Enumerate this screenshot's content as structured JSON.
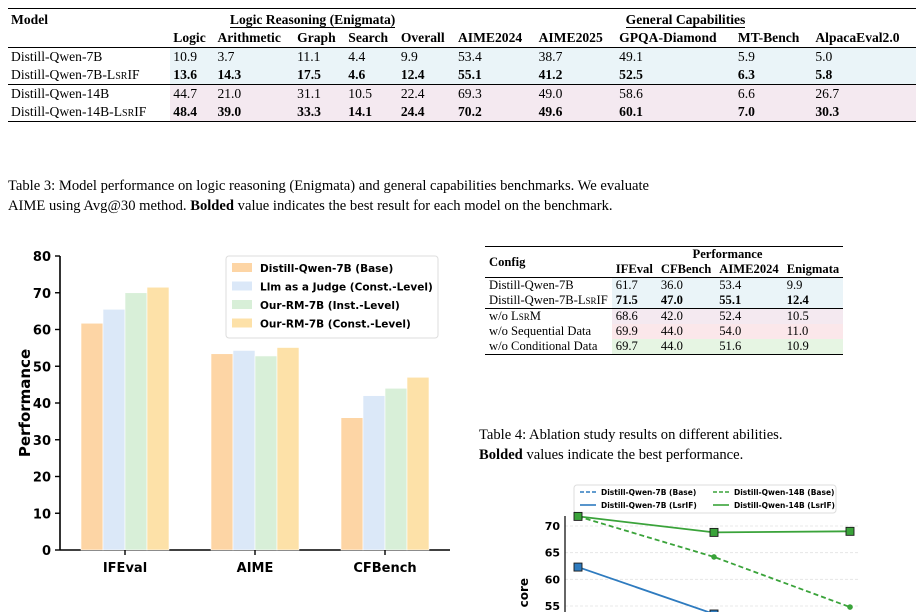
{
  "table3": {
    "model_header": "Model",
    "group_logic": "Logic Reasoning (Enigmata)",
    "group_general": "General Capabilities",
    "columns": [
      "Logic",
      "Arithmetic",
      "Graph",
      "Search",
      "Overall",
      "AIME2024",
      "AIME2025",
      "GPQA-Diamond",
      "MT-Bench",
      "AlpacaEval2.0"
    ],
    "rows": [
      {
        "model": "Distill-Qwen-7B",
        "values": [
          "10.9",
          "3.7",
          "11.1",
          "4.4",
          "9.9",
          "53.4",
          "38.7",
          "49.1",
          "5.9",
          "5.0"
        ]
      },
      {
        "model": "Distill-Qwen-7B-LsrIF",
        "values": [
          "13.6",
          "14.3",
          "17.5",
          "4.6",
          "12.4",
          "55.1",
          "41.2",
          "52.5",
          "6.3",
          "5.8"
        ]
      },
      {
        "model": "Distill-Qwen-14B",
        "values": [
          "44.7",
          "21.0",
          "31.1",
          "10.5",
          "22.4",
          "69.3",
          "49.0",
          "58.6",
          "6.6",
          "26.7"
        ]
      },
      {
        "model": "Distill-Qwen-14B-LsrIF",
        "values": [
          "48.4",
          "39.0",
          "33.3",
          "14.1",
          "24.4",
          "70.2",
          "49.6",
          "60.1",
          "7.0",
          "30.3"
        ]
      }
    ],
    "caption_line1": "Table 3: Model performance on logic reasoning (Enigmata) and general capabilities benchmarks. We evaluate",
    "caption_line2_a": "AIME using Avg@30 method.",
    "caption_line2_bold": "Bolded",
    "caption_line2_b": "value indicates the best result for each model on the benchmark."
  },
  "table4": {
    "config_header": "Config",
    "perf_header": "Performance",
    "columns": [
      "IFEval",
      "CFBench",
      "AIME2024",
      "Enigmata"
    ],
    "rows": [
      {
        "config": "Distill-Qwen-7B",
        "values": [
          "61.7",
          "36.0",
          "53.4",
          "9.9"
        ]
      },
      {
        "config": "Distill-Qwen-7B-LsrIF",
        "values": [
          "71.5",
          "47.0",
          "55.1",
          "12.4"
        ]
      },
      {
        "config": "w/o LsRM",
        "values": [
          "68.6",
          "42.0",
          "52.4",
          "10.5"
        ]
      },
      {
        "config": "w/o Sequential Data",
        "values": [
          "69.9",
          "44.0",
          "54.0",
          "11.0"
        ]
      },
      {
        "config": "w/o Conditional Data",
        "values": [
          "69.7",
          "44.0",
          "51.6",
          "10.9"
        ]
      }
    ],
    "caption_line1": "Table 4: Ablation study results on different abilities.",
    "caption_line2_bold": "Bolded",
    "caption_line2_b": "values indicate the best performance."
  },
  "chart_data": [
    {
      "type": "bar",
      "categories": [
        "IFEval",
        "AIME",
        "CFBench"
      ],
      "ylabel": "Performance",
      "xlabel": "",
      "ylim": [
        0,
        80
      ],
      "yticks": [
        "0",
        "10",
        "20",
        "30",
        "40",
        "50",
        "60",
        "70",
        "80"
      ],
      "legend_position": "top-right",
      "series": [
        {
          "name": "Distill-Qwen-7B (Base)",
          "color": "#fdd5a5",
          "values": [
            61.7,
            53.4,
            36.0
          ]
        },
        {
          "name": "Llm as a Judge (Const.-Level)",
          "color": "#dbe8f8",
          "values": [
            65.5,
            54.3,
            42.0
          ]
        },
        {
          "name": "Our-RM-7B (Inst.-Level)",
          "color": "#d8efd8",
          "values": [
            70.0,
            52.8,
            44.0
          ]
        },
        {
          "name": "Our-RM-7B (Const.-Level)",
          "color": "#fde1a8",
          "values": [
            71.5,
            55.1,
            47.0
          ]
        }
      ]
    },
    {
      "type": "line",
      "ylabel": "core",
      "ylim": [
        55,
        70
      ],
      "yticks": [
        "55",
        "60",
        "65",
        "70"
      ],
      "legend_position": "top",
      "series": [
        {
          "name": "Distill-Qwen-7B (Base)",
          "color": "#2e7bbf",
          "style": "dashed",
          "points": []
        },
        {
          "name": "Distill-Qwen-7B (LsrIF)",
          "color": "#2e7bbf",
          "style": "solid",
          "points": [
            62.3,
            53.5
          ]
        },
        {
          "name": "Distill-Qwen-14B (Base)",
          "color": "#3aa33a",
          "style": "dashed",
          "points": [
            71.8,
            64.2,
            54.8
          ]
        },
        {
          "name": "Distill-Qwen-14B (LsrIF)",
          "color": "#3aa33a",
          "style": "solid",
          "points": [
            71.8,
            68.8,
            69.0
          ]
        }
      ]
    }
  ]
}
